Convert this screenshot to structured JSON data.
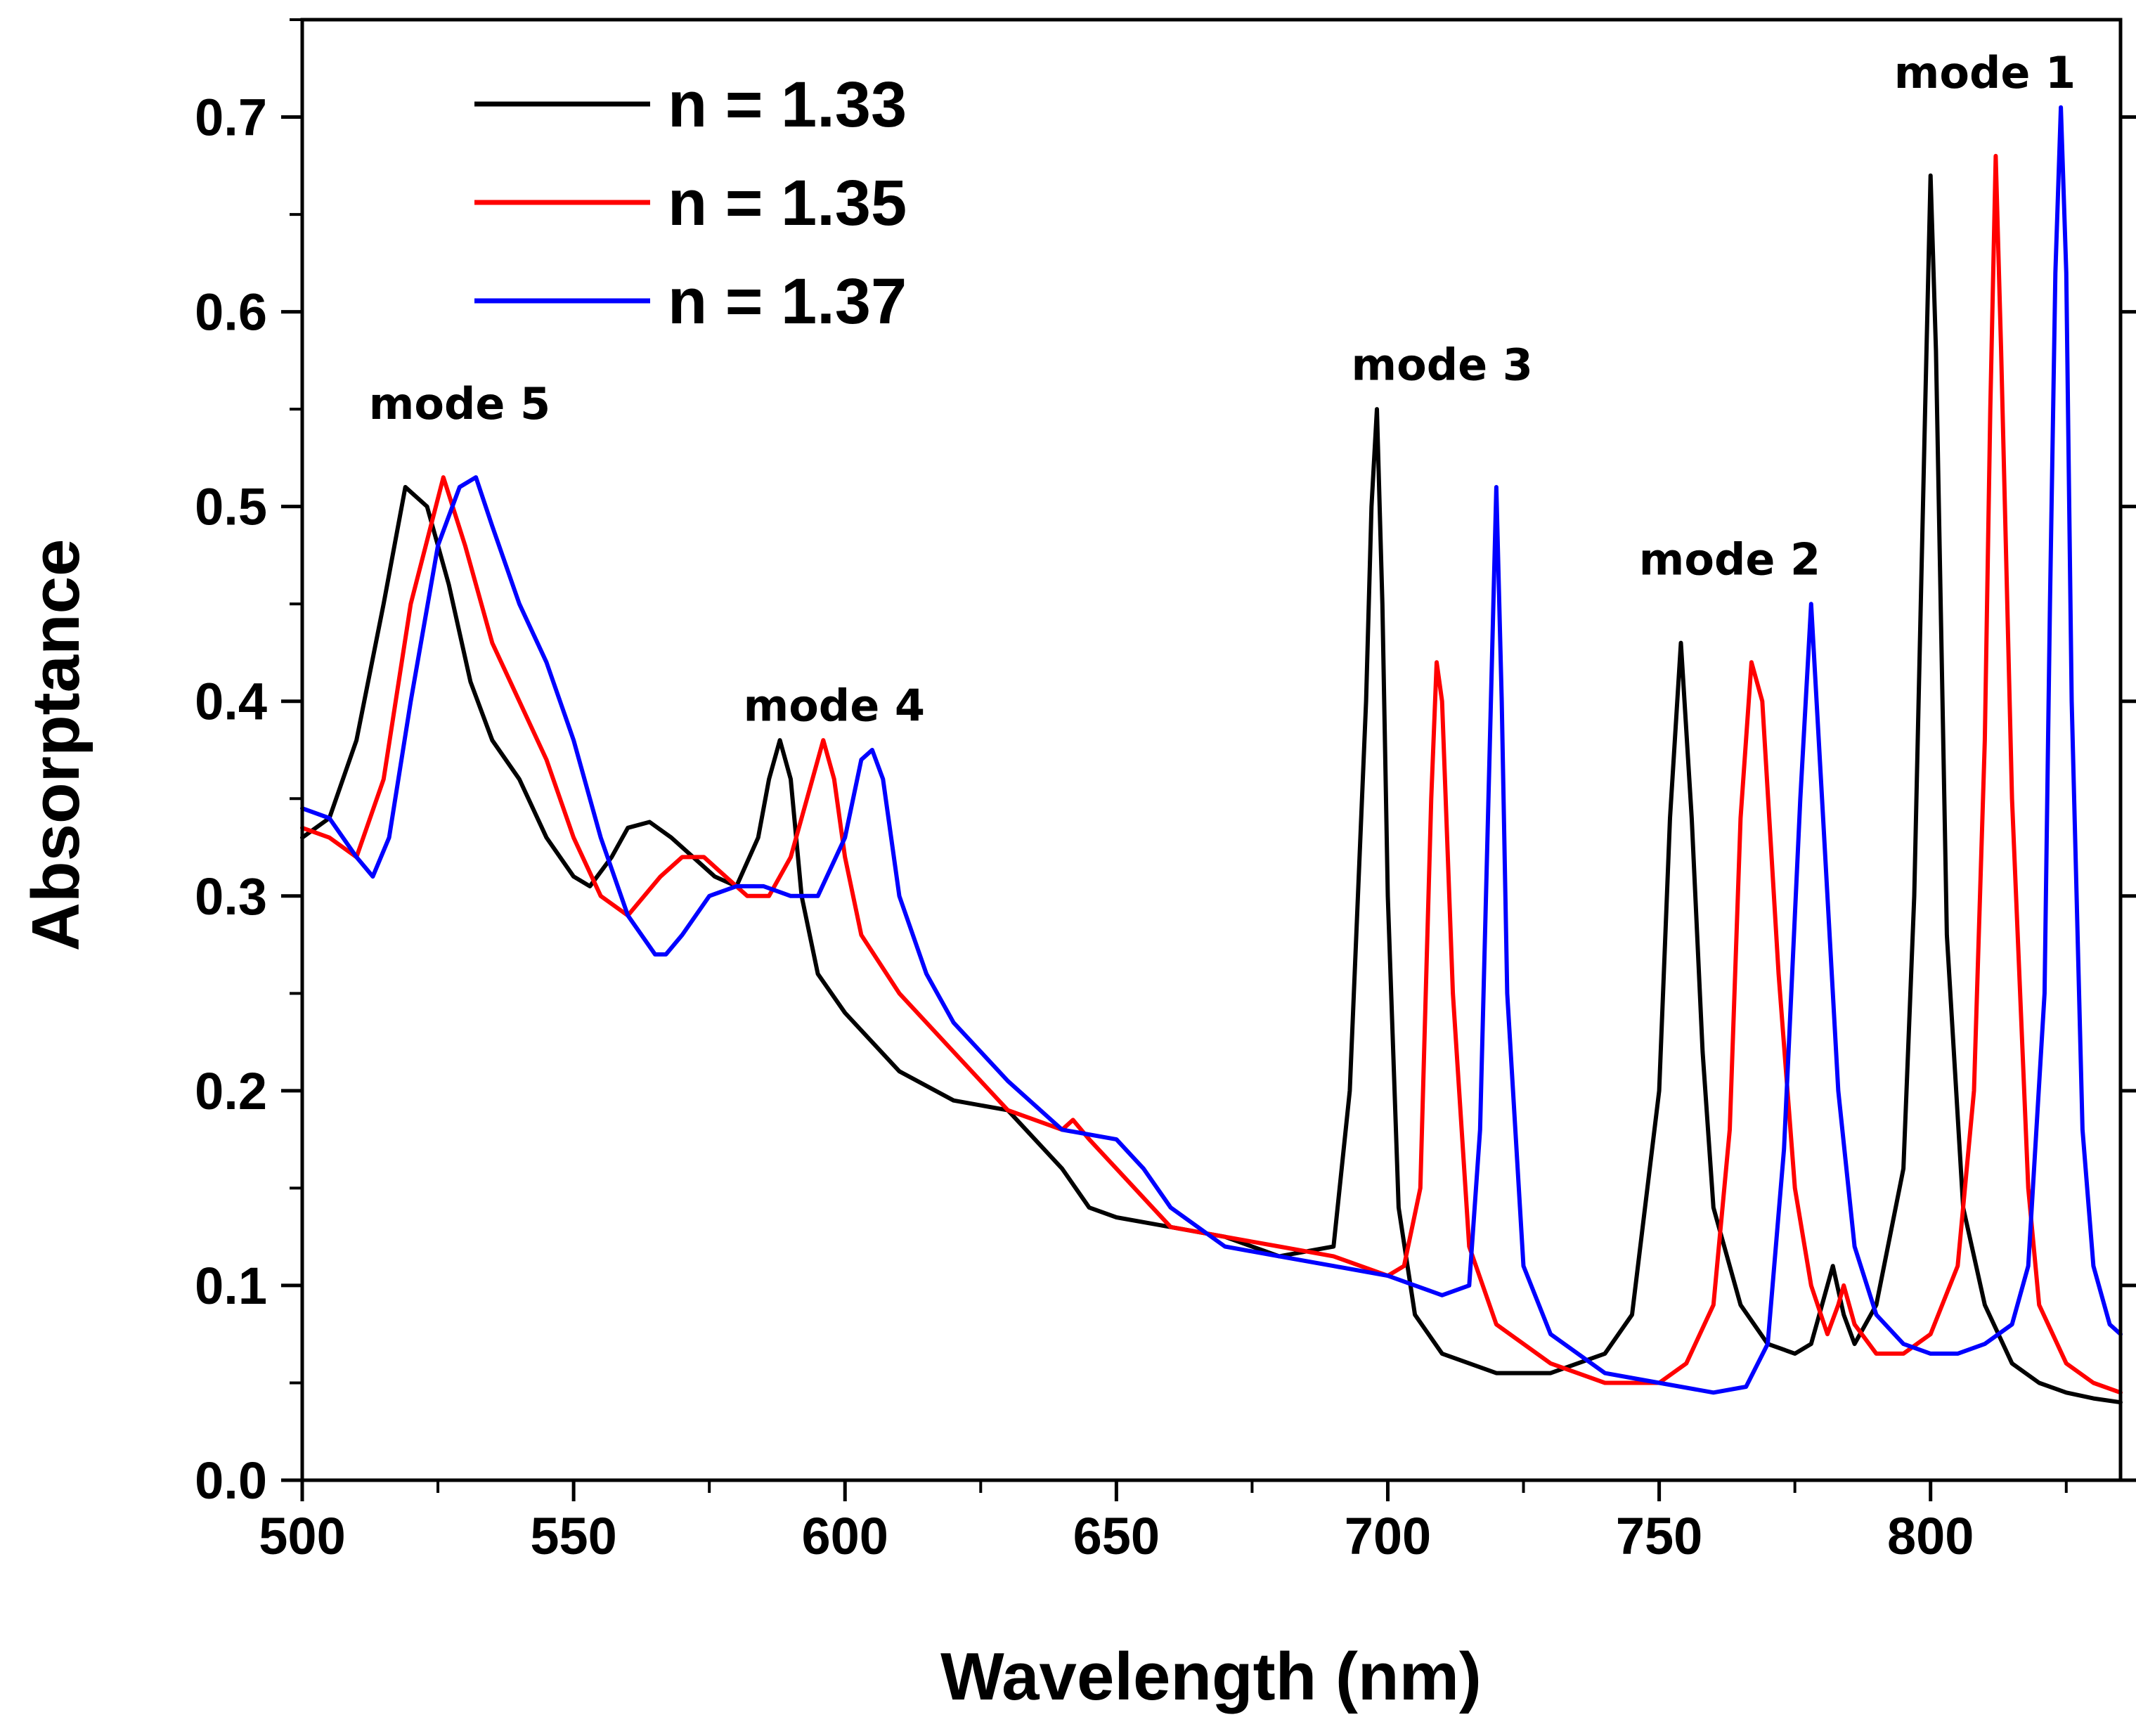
{
  "chart_data": {
    "type": "line",
    "title": "",
    "xlabel": "Wavelength (nm)",
    "ylabel": "Absorptance",
    "xlim": [
      500,
      835
    ],
    "ylim": [
      0.0,
      0.75
    ],
    "xticks": [
      500,
      550,
      600,
      650,
      700,
      750,
      800
    ],
    "yticks": [
      0.0,
      0.1,
      0.2,
      0.3,
      0.4,
      0.5,
      0.6,
      0.7
    ],
    "xtick_labels": [
      "500",
      "550",
      "600",
      "650",
      "700",
      "750",
      "800"
    ],
    "ytick_labels": [
      "0.0",
      "0.1",
      "0.2",
      "0.3",
      "0.4",
      "0.5",
      "0.6",
      "0.7"
    ],
    "grid": false,
    "legend_position": "top-left",
    "series": [
      {
        "name": "n = 1.33",
        "color": "#000000",
        "x": [
          500,
          505,
          510,
          515,
          519,
          523,
          527,
          531,
          535,
          540,
          545,
          550,
          553,
          557,
          560,
          564,
          568,
          572,
          576,
          580,
          584,
          586,
          588,
          590,
          592,
          595,
          600,
          610,
          620,
          630,
          640,
          645,
          650,
          660,
          670,
          680,
          690,
          693,
          696,
          697,
          698,
          699,
          700,
          702,
          705,
          710,
          720,
          730,
          740,
          745,
          750,
          752,
          754,
          756,
          758,
          760,
          765,
          770,
          775,
          778,
          780,
          782,
          784,
          786,
          790,
          795,
          797,
          799,
          800,
          801,
          803,
          806,
          810,
          815,
          820,
          825,
          830,
          835
        ],
        "y": [
          0.33,
          0.34,
          0.38,
          0.45,
          0.51,
          0.5,
          0.46,
          0.41,
          0.38,
          0.36,
          0.33,
          0.31,
          0.305,
          0.32,
          0.335,
          0.338,
          0.33,
          0.32,
          0.31,
          0.305,
          0.33,
          0.36,
          0.38,
          0.36,
          0.3,
          0.26,
          0.24,
          0.21,
          0.195,
          0.19,
          0.16,
          0.14,
          0.135,
          0.13,
          0.125,
          0.115,
          0.12,
          0.2,
          0.4,
          0.5,
          0.55,
          0.45,
          0.3,
          0.14,
          0.085,
          0.065,
          0.055,
          0.055,
          0.065,
          0.085,
          0.2,
          0.34,
          0.43,
          0.34,
          0.22,
          0.14,
          0.09,
          0.07,
          0.065,
          0.07,
          0.09,
          0.11,
          0.085,
          0.07,
          0.09,
          0.16,
          0.3,
          0.55,
          0.67,
          0.58,
          0.28,
          0.14,
          0.09,
          0.06,
          0.05,
          0.045,
          0.042,
          0.04
        ]
      },
      {
        "name": "n = 1.35",
        "color": "#ff0000",
        "x": [
          500,
          505,
          510,
          515,
          520,
          526,
          530,
          535,
          540,
          545,
          550,
          555,
          560,
          563,
          566,
          570,
          574,
          578,
          582,
          586,
          590,
          594,
          596,
          598,
          600,
          603,
          610,
          620,
          630,
          640,
          642,
          645,
          650,
          660,
          670,
          680,
          690,
          700,
          703,
          706,
          707,
          708,
          709,
          710,
          712,
          715,
          720,
          730,
          740,
          750,
          755,
          760,
          763,
          765,
          767,
          769,
          772,
          775,
          778,
          781,
          783,
          784,
          786,
          790,
          795,
          800,
          805,
          808,
          810,
          811,
          812,
          813,
          815,
          818,
          820,
          825,
          830,
          835
        ],
        "y": [
          0.335,
          0.33,
          0.32,
          0.36,
          0.45,
          0.515,
          0.48,
          0.43,
          0.4,
          0.37,
          0.33,
          0.3,
          0.29,
          0.3,
          0.31,
          0.32,
          0.32,
          0.31,
          0.3,
          0.3,
          0.32,
          0.36,
          0.38,
          0.36,
          0.32,
          0.28,
          0.25,
          0.22,
          0.19,
          0.18,
          0.185,
          0.175,
          0.16,
          0.13,
          0.125,
          0.12,
          0.115,
          0.105,
          0.11,
          0.15,
          0.25,
          0.35,
          0.42,
          0.4,
          0.25,
          0.12,
          0.08,
          0.06,
          0.05,
          0.05,
          0.06,
          0.09,
          0.18,
          0.34,
          0.42,
          0.4,
          0.26,
          0.15,
          0.1,
          0.075,
          0.09,
          0.1,
          0.08,
          0.065,
          0.065,
          0.075,
          0.11,
          0.2,
          0.38,
          0.55,
          0.68,
          0.58,
          0.35,
          0.15,
          0.09,
          0.06,
          0.05,
          0.045
        ]
      },
      {
        "name": "n = 1.37",
        "color": "#0000ff",
        "x": [
          500,
          505,
          510,
          513,
          516,
          520,
          525,
          529,
          532,
          535,
          540,
          545,
          550,
          555,
          560,
          565,
          567,
          570,
          575,
          580,
          585,
          590,
          595,
          600,
          603,
          605,
          607,
          610,
          615,
          620,
          630,
          640,
          650,
          655,
          660,
          670,
          680,
          690,
          700,
          705,
          710,
          715,
          717,
          719,
          720,
          721,
          722,
          725,
          730,
          740,
          750,
          760,
          766,
          770,
          773,
          776,
          778,
          780,
          783,
          786,
          790,
          795,
          800,
          805,
          810,
          815,
          818,
          821,
          822,
          823,
          824,
          825,
          826,
          828,
          830,
          833,
          835
        ],
        "y": [
          0.345,
          0.34,
          0.32,
          0.31,
          0.33,
          0.4,
          0.48,
          0.51,
          0.515,
          0.49,
          0.45,
          0.42,
          0.38,
          0.33,
          0.29,
          0.27,
          0.27,
          0.28,
          0.3,
          0.305,
          0.305,
          0.3,
          0.3,
          0.33,
          0.37,
          0.375,
          0.36,
          0.3,
          0.26,
          0.235,
          0.205,
          0.18,
          0.175,
          0.16,
          0.14,
          0.12,
          0.115,
          0.11,
          0.105,
          0.1,
          0.095,
          0.1,
          0.18,
          0.4,
          0.51,
          0.4,
          0.25,
          0.11,
          0.075,
          0.055,
          0.05,
          0.045,
          0.048,
          0.07,
          0.17,
          0.35,
          0.45,
          0.35,
          0.2,
          0.12,
          0.085,
          0.07,
          0.065,
          0.065,
          0.07,
          0.08,
          0.11,
          0.25,
          0.45,
          0.62,
          0.705,
          0.62,
          0.4,
          0.18,
          0.11,
          0.08,
          0.075
        ]
      }
    ],
    "annotations": [
      {
        "text": "mode 5",
        "x": 529,
        "y": 0.545
      },
      {
        "text": "mode 4",
        "x": 598,
        "y": 0.39
      },
      {
        "text": "mode 3",
        "x": 710,
        "y": 0.565
      },
      {
        "text": "mode 2",
        "x": 763,
        "y": 0.465
      },
      {
        "text": "mode 1",
        "x": 810,
        "y": 0.715
      }
    ]
  }
}
